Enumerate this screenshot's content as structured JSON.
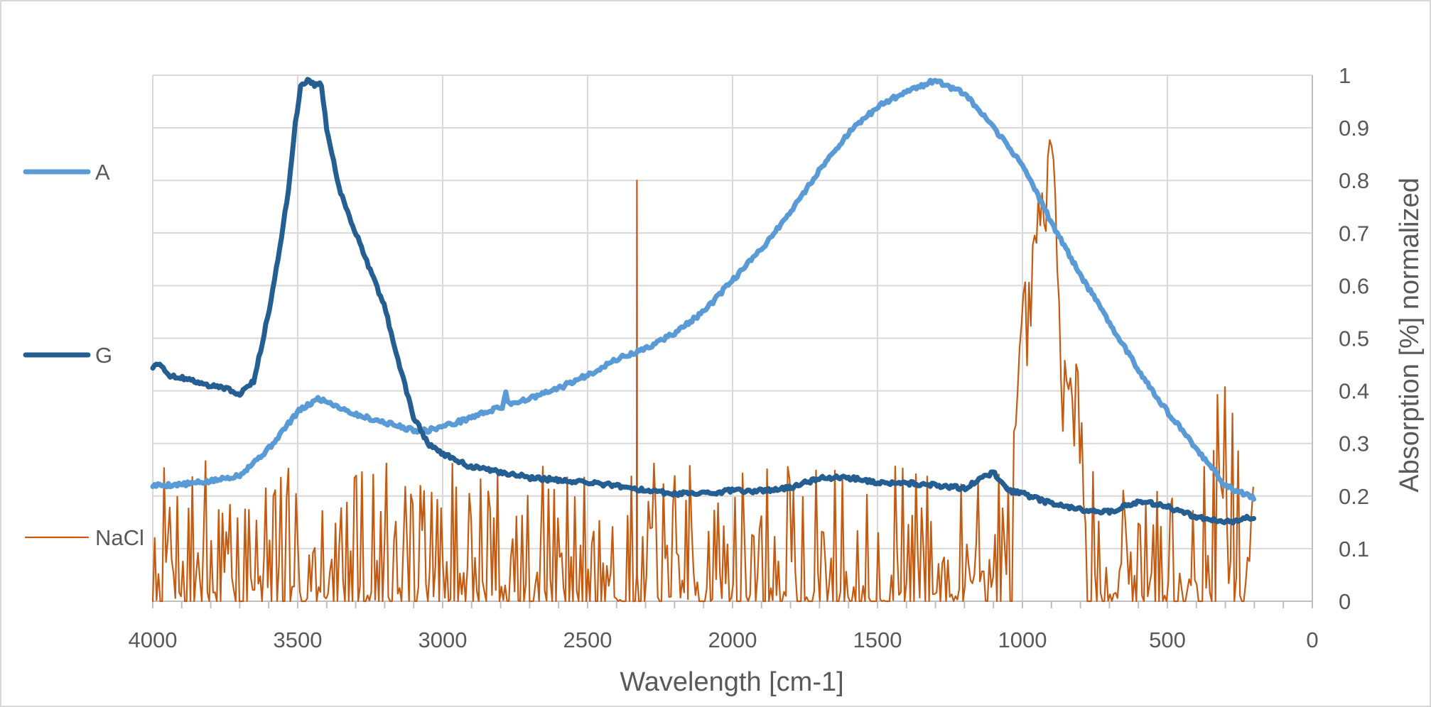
{
  "chart_data": {
    "type": "line",
    "title": "",
    "xlabel": "Wavelength [cm-1]",
    "ylabel": "Absorption [%] normalized",
    "xlim": [
      4000,
      0
    ],
    "ylim": [
      0,
      1
    ],
    "x_ticks": [
      "4000",
      "3500",
      "3000",
      "2500",
      "2000",
      "1500",
      "1000",
      "500",
      "0"
    ],
    "y_ticks": [
      "0",
      "0.1",
      "0.2",
      "0.3",
      "0.4",
      "0.5",
      "0.6",
      "0.7",
      "0.8",
      "0.9",
      "1"
    ],
    "grid": true,
    "legend_position": "left",
    "series": [
      {
        "name": "A",
        "color": "#5b9bd5",
        "line_width": 7,
        "points": [
          [
            4000,
            0.22
          ],
          [
            3900,
            0.222
          ],
          [
            3800,
            0.228
          ],
          [
            3700,
            0.24
          ],
          [
            3600,
            0.29
          ],
          [
            3500,
            0.36
          ],
          [
            3430,
            0.385
          ],
          [
            3400,
            0.38
          ],
          [
            3300,
            0.355
          ],
          [
            3200,
            0.34
          ],
          [
            3100,
            0.325
          ],
          [
            3050,
            0.325
          ],
          [
            2950,
            0.34
          ],
          [
            2850,
            0.36
          ],
          [
            2790,
            0.37
          ],
          [
            2785,
            0.41
          ],
          [
            2775,
            0.375
          ],
          [
            2700,
            0.385
          ],
          [
            2600,
            0.405
          ],
          [
            2500,
            0.43
          ],
          [
            2400,
            0.46
          ],
          [
            2300,
            0.48
          ],
          [
            2200,
            0.51
          ],
          [
            2100,
            0.55
          ],
          [
            2000,
            0.61
          ],
          [
            1900,
            0.67
          ],
          [
            1800,
            0.74
          ],
          [
            1700,
            0.82
          ],
          [
            1600,
            0.89
          ],
          [
            1500,
            0.94
          ],
          [
            1400,
            0.97
          ],
          [
            1300,
            0.99
          ],
          [
            1200,
            0.965
          ],
          [
            1100,
            0.9
          ],
          [
            1000,
            0.83
          ],
          [
            900,
            0.72
          ],
          [
            800,
            0.62
          ],
          [
            700,
            0.53
          ],
          [
            600,
            0.44
          ],
          [
            500,
            0.36
          ],
          [
            400,
            0.29
          ],
          [
            300,
            0.22
          ],
          [
            200,
            0.195
          ]
        ]
      },
      {
        "name": "G",
        "color": "#255e91",
        "line_width": 7,
        "points": [
          [
            4000,
            0.445
          ],
          [
            3980,
            0.455
          ],
          [
            3950,
            0.43
          ],
          [
            3900,
            0.425
          ],
          [
            3800,
            0.41
          ],
          [
            3750,
            0.405
          ],
          [
            3700,
            0.395
          ],
          [
            3650,
            0.42
          ],
          [
            3600,
            0.55
          ],
          [
            3560,
            0.68
          ],
          [
            3530,
            0.79
          ],
          [
            3510,
            0.9
          ],
          [
            3490,
            0.98
          ],
          [
            3470,
            0.99
          ],
          [
            3440,
            0.98
          ],
          [
            3420,
            0.99
          ],
          [
            3400,
            0.9
          ],
          [
            3360,
            0.79
          ],
          [
            3300,
            0.7
          ],
          [
            3250,
            0.63
          ],
          [
            3200,
            0.56
          ],
          [
            3150,
            0.45
          ],
          [
            3100,
            0.35
          ],
          [
            3050,
            0.3
          ],
          [
            3000,
            0.28
          ],
          [
            2900,
            0.255
          ],
          [
            2800,
            0.245
          ],
          [
            2700,
            0.235
          ],
          [
            2600,
            0.23
          ],
          [
            2500,
            0.225
          ],
          [
            2400,
            0.22
          ],
          [
            2300,
            0.21
          ],
          [
            2200,
            0.205
          ],
          [
            2100,
            0.205
          ],
          [
            2000,
            0.21
          ],
          [
            1900,
            0.21
          ],
          [
            1800,
            0.215
          ],
          [
            1700,
            0.235
          ],
          [
            1600,
            0.235
          ],
          [
            1500,
            0.225
          ],
          [
            1400,
            0.225
          ],
          [
            1300,
            0.22
          ],
          [
            1200,
            0.215
          ],
          [
            1100,
            0.245
          ],
          [
            1050,
            0.21
          ],
          [
            1000,
            0.205
          ],
          [
            900,
            0.185
          ],
          [
            800,
            0.175
          ],
          [
            700,
            0.17
          ],
          [
            600,
            0.19
          ],
          [
            500,
            0.18
          ],
          [
            400,
            0.16
          ],
          [
            300,
            0.15
          ],
          [
            200,
            0.16
          ]
        ]
      },
      {
        "name": "NaCl",
        "color": "#c55a11",
        "line_width": 2.2,
        "noise": true,
        "noise_seed": 7,
        "noise_step": 6.5,
        "points": [
          [
            4000,
            0.08
          ],
          [
            3600,
            0.085
          ],
          [
            3000,
            0.085
          ],
          [
            2400,
            0.08
          ],
          [
            2332,
            0.08
          ],
          [
            2330,
            0.8
          ],
          [
            2328,
            0.08
          ],
          [
            2000,
            0.075
          ],
          [
            1600,
            0.08
          ],
          [
            1200,
            0.07
          ],
          [
            1060,
            0.1
          ],
          [
            1030,
            0.18
          ],
          [
            1000,
            0.48
          ],
          [
            960,
            0.6
          ],
          [
            930,
            0.75
          ],
          [
            900,
            0.8
          ],
          [
            880,
            0.74
          ],
          [
            870,
            0.45
          ],
          [
            840,
            0.36
          ],
          [
            800,
            0.33
          ],
          [
            760,
            0.15
          ],
          [
            700,
            0.08
          ],
          [
            600,
            0.085
          ],
          [
            500,
            0.07
          ],
          [
            400,
            0.09
          ],
          [
            350,
            0.16
          ],
          [
            320,
            0.28
          ],
          [
            300,
            0.3
          ],
          [
            270,
            0.1
          ],
          [
            200,
            0.08
          ]
        ]
      }
    ]
  }
}
